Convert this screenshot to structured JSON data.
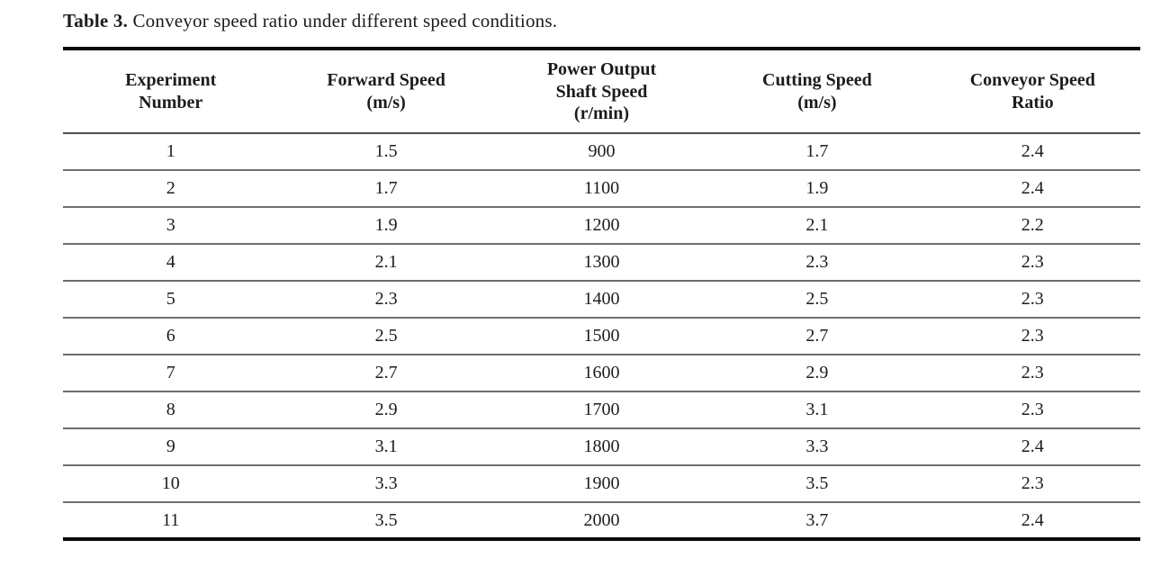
{
  "caption": {
    "label": "Table 3.",
    "text": " Conveyor speed ratio under different speed conditions."
  },
  "table": {
    "headers": [
      "Experiment\nNumber",
      "Forward Speed\n(m/s)",
      "Power Output\nShaft Speed\n(r/min)",
      "Cutting Speed\n(m/s)",
      "Conveyor Speed\nRatio"
    ],
    "rows": [
      [
        "1",
        "1.5",
        "900",
        "1.7",
        "2.4"
      ],
      [
        "2",
        "1.7",
        "1100",
        "1.9",
        "2.4"
      ],
      [
        "3",
        "1.9",
        "1200",
        "2.1",
        "2.2"
      ],
      [
        "4",
        "2.1",
        "1300",
        "2.3",
        "2.3"
      ],
      [
        "5",
        "2.3",
        "1400",
        "2.5",
        "2.3"
      ],
      [
        "6",
        "2.5",
        "1500",
        "2.7",
        "2.3"
      ],
      [
        "7",
        "2.7",
        "1600",
        "2.9",
        "2.3"
      ],
      [
        "8",
        "2.9",
        "1700",
        "3.1",
        "2.3"
      ],
      [
        "9",
        "3.1",
        "1800",
        "3.3",
        "2.4"
      ],
      [
        "10",
        "3.3",
        "1900",
        "3.5",
        "2.3"
      ],
      [
        "11",
        "3.5",
        "2000",
        "3.7",
        "2.4"
      ]
    ],
    "colors": {
      "text": "#1c1c1c",
      "thick_rule": "#0a0a0a",
      "thin_rule": "#6e6e6e",
      "header_rule": "#4f4f4f",
      "background": "#ffffff"
    }
  }
}
